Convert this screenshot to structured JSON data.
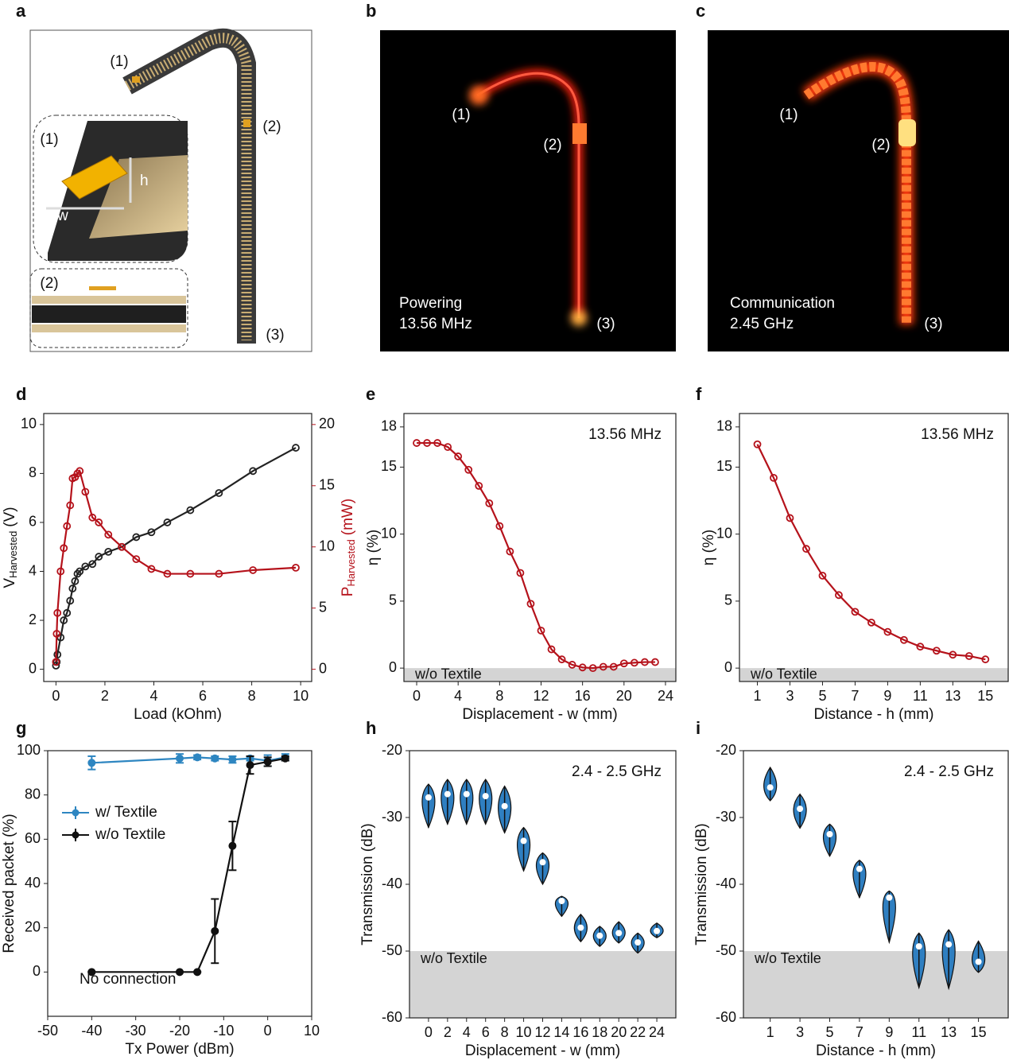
{
  "figure": {
    "a": {
      "panel": "a",
      "labels": [
        "(1)",
        "(2)",
        "(3)"
      ],
      "insets": [
        "(1)",
        "(2)"
      ],
      "dims": [
        "h",
        "w"
      ]
    },
    "b": {
      "panel": "b",
      "labels": [
        "(1)",
        "(2)",
        "(3)"
      ],
      "caption": [
        "Powering",
        "13.56 MHz"
      ]
    },
    "c": {
      "panel": "c",
      "labels": [
        "(1)",
        "(2)",
        "(3)"
      ],
      "caption": [
        "Communication",
        "2.45 GHz"
      ]
    }
  },
  "chart_data": [
    {
      "type": "line",
      "panel": "d",
      "xlabel": "Load (kOhm)",
      "ylabel": {
        "symbol": "V",
        "sub": "Harvested",
        "unit": "(V)"
      },
      "y2label": {
        "symbol": "P",
        "sub": "Harvested",
        "unit": "(mW)"
      },
      "xlim": [
        -0.5,
        10.45
      ],
      "ylim": [
        -0.5,
        10.45
      ],
      "y2lim": [
        -1,
        20.9
      ],
      "xticks": [
        0,
        2,
        4,
        6,
        8,
        10
      ],
      "yticks": [
        0,
        2,
        4,
        6,
        8,
        10
      ],
      "y2ticks": [
        0,
        5,
        10,
        15,
        20
      ],
      "marker": "open",
      "x": [
        0.0,
        0.03,
        0.06,
        0.19,
        0.32,
        0.45,
        0.58,
        0.68,
        0.78,
        0.88,
        0.97,
        1.2,
        1.49,
        1.75,
        2.14,
        2.69,
        3.28,
        3.9,
        4.55,
        5.49,
        6.66,
        8.05,
        9.8
      ],
      "series": [
        {
          "color": "#222222",
          "values": [
            0.15,
            0.3,
            0.6,
            1.3,
            2.0,
            2.3,
            2.8,
            3.3,
            3.6,
            3.9,
            4.0,
            4.2,
            4.3,
            4.6,
            4.8,
            5.0,
            5.4,
            5.6,
            6.0,
            6.5,
            7.2,
            8.1,
            9.05
          ]
        },
        {
          "color": "#b5121b",
          "axis": "y2",
          "values": [
            0.6,
            2.9,
            4.6,
            8.0,
            9.9,
            11.7,
            13.4,
            15.6,
            15.7,
            16.0,
            16.2,
            14.5,
            12.4,
            12.0,
            11.0,
            10.0,
            9.0,
            8.2,
            7.8,
            7.8,
            7.8,
            8.1,
            8.3
          ]
        }
      ]
    },
    {
      "type": "line",
      "panel": "e",
      "annotation": "13.56 MHz",
      "annotation_position": "upper right",
      "xlabel": "Displacement - w (mm)",
      "ylabel": "η (%)",
      "xlim": [
        -1.23,
        25
      ],
      "ylim": [
        -1,
        19
      ],
      "xticks": [
        0,
        4,
        8,
        12,
        16,
        20,
        24
      ],
      "yticks": [
        0,
        5,
        10,
        15,
        18
      ],
      "band": {
        "label": "w/o Textile",
        "top": 0
      },
      "marker": "open",
      "x": [
        0,
        1,
        2,
        3,
        4,
        5,
        6,
        7,
        8,
        9,
        10,
        11,
        12,
        13,
        14,
        15,
        16,
        17,
        18,
        19,
        20,
        21,
        22,
        23
      ],
      "series": [
        {
          "color": "#b5121b",
          "values": [
            16.8,
            16.8,
            16.8,
            16.5,
            15.8,
            14.8,
            13.6,
            12.3,
            10.6,
            8.7,
            7.1,
            4.8,
            2.8,
            1.4,
            0.65,
            0.25,
            0.05,
            0.0,
            0.1,
            0.1,
            0.35,
            0.4,
            0.45,
            0.45
          ]
        }
      ]
    },
    {
      "type": "line",
      "panel": "f",
      "annotation": "13.56 MHz",
      "annotation_position": "upper right",
      "xlabel": "Distance - h (mm)",
      "ylabel": "η (%)",
      "xlim": [
        -0.1,
        16.4
      ],
      "ylim": [
        -1,
        19
      ],
      "xticks": [
        1,
        3,
        5,
        7,
        9,
        11,
        13,
        15
      ],
      "yticks": [
        0,
        5,
        10,
        15,
        18
      ],
      "band": {
        "label": "w/o Textile",
        "top": 0
      },
      "marker": "open",
      "x": [
        1,
        2,
        3,
        4,
        5,
        6,
        7,
        8,
        9,
        10,
        11,
        12,
        13,
        14,
        15
      ],
      "series": [
        {
          "color": "#b5121b",
          "values": [
            16.7,
            14.2,
            11.2,
            8.9,
            6.9,
            5.45,
            4.2,
            3.4,
            2.7,
            2.1,
            1.6,
            1.3,
            1.0,
            0.9,
            0.65
          ]
        }
      ]
    },
    {
      "type": "line",
      "panel": "g",
      "annotation": "No connection",
      "annotation_position": "lower left",
      "xlabel": "Tx Power (dBm)",
      "ylabel": "Received packet (%)",
      "xlim": [
        -50,
        10
      ],
      "ylim": [
        -20,
        100
      ],
      "xticks": [
        -50,
        -40,
        -30,
        -20,
        -10,
        0,
        10
      ],
      "yticks": [
        0,
        20,
        40,
        60,
        80,
        100
      ],
      "legend": "center left",
      "marker": "filled",
      "x": [
        -40,
        -20,
        -16,
        -12,
        -8,
        -4,
        0,
        4
      ],
      "series": [
        {
          "name": "w/ Textile",
          "color": "#2e86c1",
          "values": [
            94.5,
            96.5,
            97,
            96.5,
            96,
            96.5,
            95.5,
            97
          ],
          "errors": [
            3,
            2,
            1,
            1,
            1.5,
            1,
            2.5,
            1.5
          ]
        },
        {
          "name": "w/o Textile",
          "color": "#111111",
          "values": [
            0,
            0,
            0,
            18.5,
            57,
            93.5,
            95,
            96.5
          ],
          "errors": [
            0,
            0,
            0,
            14.5,
            11,
            4,
            2,
            1
          ]
        }
      ]
    },
    {
      "type": "violin",
      "panel": "h",
      "annotation": "2.4 - 2.5 GHz",
      "annotation_position": "upper right",
      "xlabel": "Displacement - w (mm)",
      "ylabel": "Transmission (dB)",
      "xlim": [
        -2,
        26
      ],
      "ylim": [
        -60,
        -20
      ],
      "xticks": [
        0,
        2,
        4,
        6,
        8,
        10,
        12,
        14,
        16,
        18,
        20,
        22,
        24
      ],
      "yticks": [
        -20,
        -30,
        -40,
        -50,
        -60
      ],
      "band": {
        "label": "w/o Textile",
        "top": -50
      },
      "color": "#2f7fc1",
      "x": [
        0,
        2,
        4,
        6,
        8,
        10,
        12,
        14,
        16,
        18,
        20,
        22,
        24
      ],
      "median": [
        -27,
        -26.5,
        -26.5,
        -26.8,
        -28.3,
        -33.5,
        -36.7,
        -42.5,
        -46.5,
        -47.7,
        -47.3,
        -48.7,
        -47
      ],
      "min": [
        -31.5,
        -31,
        -31,
        -31,
        -32.3,
        -38,
        -40,
        -44.8,
        -48.6,
        -49.3,
        -48.8,
        -50.3,
        -48
      ],
      "max": [
        -25,
        -24.3,
        -24.3,
        -24.3,
        -25.3,
        -31.5,
        -35.3,
        -41.8,
        -44.5,
        -46.3,
        -45.6,
        -47.3,
        -45.8
      ]
    },
    {
      "type": "violin",
      "panel": "i",
      "annotation": "2.4 - 2.5 GHz",
      "annotation_position": "upper right",
      "xlabel": "Distance - h (mm)",
      "ylabel": "Transmission (dB)",
      "xlim": [
        -0.8,
        17
      ],
      "ylim": [
        -60,
        -20
      ],
      "xticks": [
        1,
        3,
        5,
        7,
        9,
        11,
        13,
        15
      ],
      "yticks": [
        -20,
        -30,
        -40,
        -50,
        -60
      ],
      "band": {
        "label": "w/o Textile",
        "top": -50
      },
      "color": "#2f7fc1",
      "x": [
        1,
        3,
        5,
        7,
        9,
        11,
        13,
        15
      ],
      "median": [
        -25.5,
        -28.7,
        -32.5,
        -37.7,
        -42,
        -49.3,
        -49,
        -51.6
      ],
      "min": [
        -27.5,
        -31.6,
        -35.8,
        -42,
        -48.7,
        -55.5,
        -55.6,
        -53.2
      ],
      "max": [
        -22.5,
        -26.5,
        -31,
        -36.4,
        -41,
        -47.3,
        -46.8,
        -48.5
      ]
    }
  ]
}
